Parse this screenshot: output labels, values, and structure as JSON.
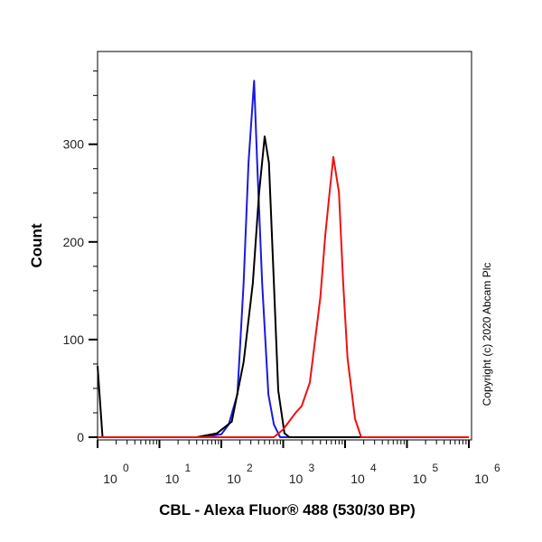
{
  "chart_data": {
    "type": "line",
    "title": "",
    "xlabel": "CBL - Alexa Fluor® 488 (530/30 BP)",
    "ylabel": "Count",
    "xscale": "log",
    "xlim_log10": [
      0,
      6
    ],
    "ylim": [
      0,
      395
    ],
    "x_ticks": [
      {
        "base": "10",
        "exp": "0"
      },
      {
        "base": "10",
        "exp": "1"
      },
      {
        "base": "10",
        "exp": "2"
      },
      {
        "base": "10",
        "exp": "3"
      },
      {
        "base": "10",
        "exp": "4"
      },
      {
        "base": "10",
        "exp": "5"
      },
      {
        "base": "10",
        "exp": "6"
      }
    ],
    "y_ticks": [
      "0",
      "100",
      "200",
      "300"
    ],
    "y_tick_values": [
      0,
      100,
      200,
      300
    ],
    "annotation": "Copyright (c) 2020 Abcam Plc",
    "series": [
      {
        "name": "blue",
        "color": "#1a1adf",
        "points_log10x_count": [
          [
            1.7,
            0
          ],
          [
            2.0,
            3
          ],
          [
            2.12,
            13
          ],
          [
            2.26,
            44
          ],
          [
            2.36,
            158
          ],
          [
            2.44,
            281
          ],
          [
            2.53,
            365
          ],
          [
            2.58,
            281
          ],
          [
            2.66,
            158
          ],
          [
            2.76,
            44
          ],
          [
            2.85,
            13
          ],
          [
            2.95,
            0
          ],
          [
            6,
            0
          ]
        ]
      },
      {
        "name": "black",
        "color": "#000000",
        "points_log10x_count": [
          [
            0,
            73
          ],
          [
            0.08,
            0
          ],
          [
            1.6,
            0
          ],
          [
            1.93,
            4
          ],
          [
            2.17,
            16
          ],
          [
            2.36,
            77
          ],
          [
            2.51,
            158
          ],
          [
            2.61,
            250
          ],
          [
            2.7,
            308
          ],
          [
            2.77,
            281
          ],
          [
            2.85,
            158
          ],
          [
            2.92,
            48
          ],
          [
            3.02,
            4
          ],
          [
            3.1,
            0
          ],
          [
            6,
            0
          ]
        ]
      },
      {
        "name": "red",
        "color": "#ee1111",
        "points_log10x_count": [
          [
            0,
            0
          ],
          [
            2.85,
            0
          ],
          [
            3.0,
            8
          ],
          [
            3.2,
            25
          ],
          [
            3.3,
            32
          ],
          [
            3.43,
            56
          ],
          [
            3.6,
            143
          ],
          [
            3.68,
            207
          ],
          [
            3.75,
            251
          ],
          [
            3.81,
            287
          ],
          [
            3.9,
            251
          ],
          [
            3.97,
            158
          ],
          [
            4.04,
            81
          ],
          [
            4.16,
            19
          ],
          [
            4.26,
            0
          ],
          [
            6,
            0
          ]
        ]
      }
    ]
  }
}
